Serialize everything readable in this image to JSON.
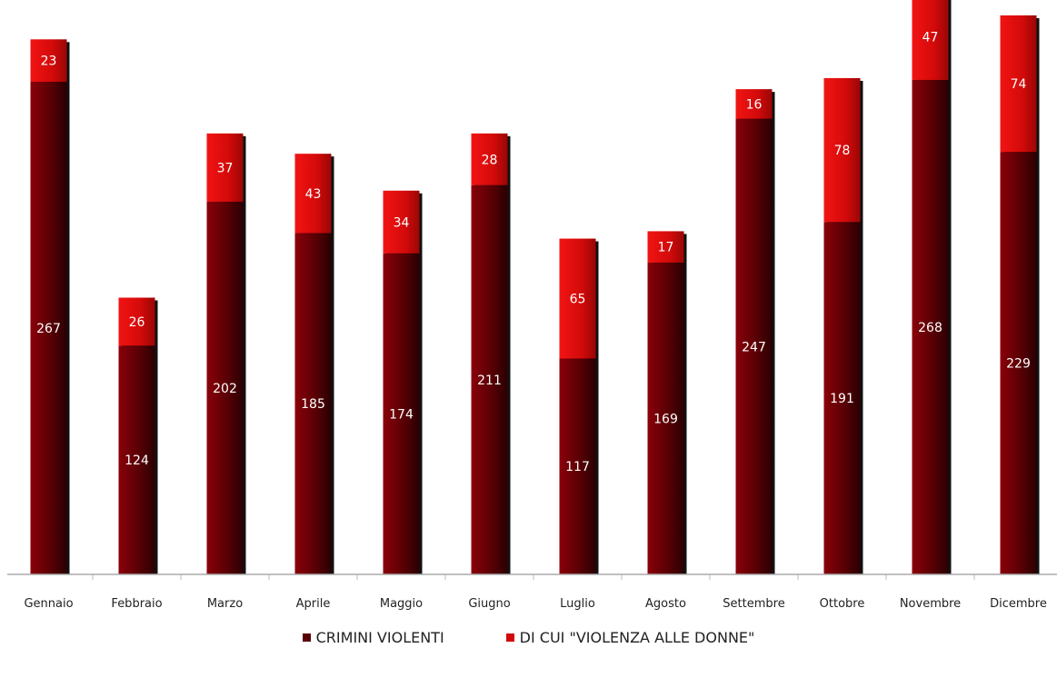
{
  "chart_data": {
    "type": "bar",
    "stacked": true,
    "categories": [
      "Gennaio",
      "Febbraio",
      "Marzo",
      "Aprile",
      "Maggio",
      "Giugno",
      "Luglio",
      "Agosto",
      "Settembre",
      "Ottobre",
      "Novembre",
      "Dicembre"
    ],
    "series": [
      {
        "name": "CRIMINI VIOLENTI",
        "values": [
          267,
          124,
          202,
          185,
          174,
          211,
          117,
          169,
          247,
          191,
          268,
          229
        ],
        "color": "#5a0005"
      },
      {
        "name": "DI CUI \"VIOLENZA ALLE DONNE\"",
        "values": [
          23,
          26,
          37,
          43,
          34,
          28,
          65,
          17,
          16,
          78,
          47,
          74
        ],
        "color": "#d40a0a"
      }
    ],
    "grid": false,
    "legend_position": "bottom"
  }
}
